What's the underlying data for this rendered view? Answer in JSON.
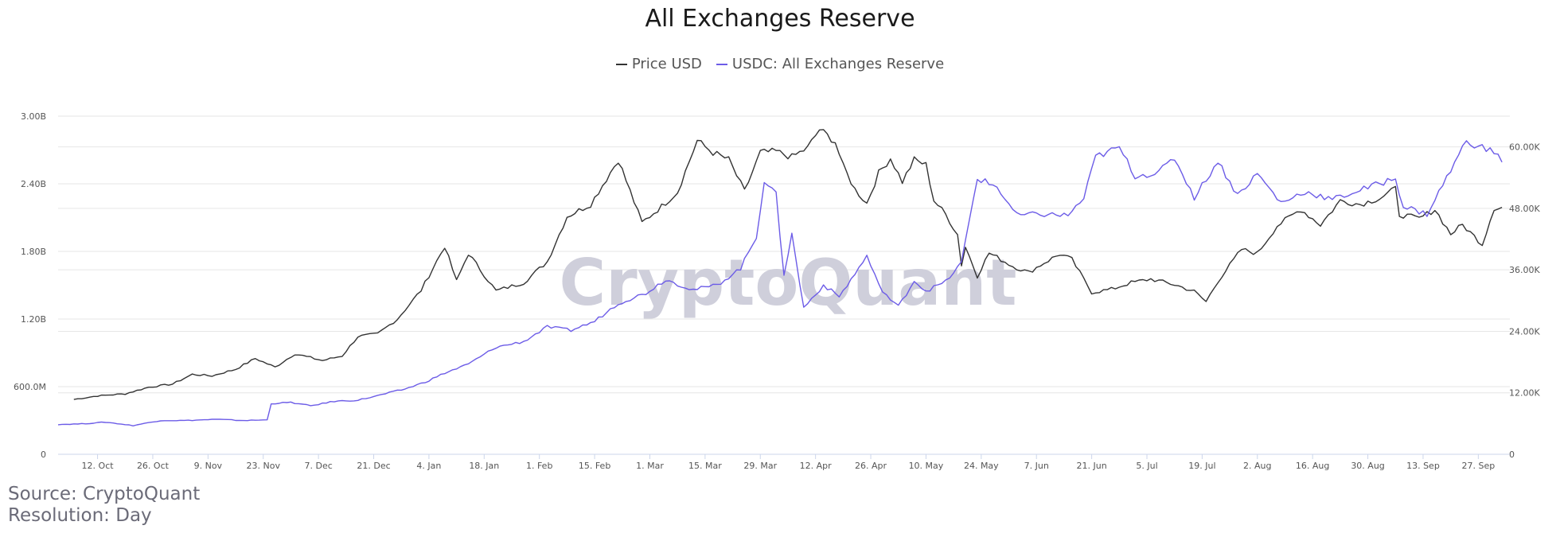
{
  "chart_data": {
    "type": "line",
    "title": "All Exchanges Reserve",
    "watermark": "CryptoQuant",
    "left_axis": {
      "ylim": [
        0,
        3000000000
      ],
      "ticks": [
        0,
        600000000,
        1200000000,
        1800000000,
        2400000000,
        3000000000
      ],
      "tick_labels": [
        "0",
        "600.0M",
        "1.20B",
        "1.80B",
        "2.40B",
        "3.00B"
      ]
    },
    "right_axis": {
      "ylim": [
        0,
        66000
      ],
      "ticks": [
        0,
        12000,
        24000,
        36000,
        48000,
        60000
      ],
      "tick_labels": [
        "0",
        "12.00K",
        "24.00K",
        "36.00K",
        "48.00K",
        "60.00K"
      ]
    },
    "x_range": [
      "2020-10-02",
      "2021-10-05"
    ],
    "x_ticks": [
      {
        "date": "2020-10-12",
        "label": "12. Oct"
      },
      {
        "date": "2020-10-26",
        "label": "26. Oct"
      },
      {
        "date": "2020-11-09",
        "label": "9. Nov"
      },
      {
        "date": "2020-11-23",
        "label": "23. Nov"
      },
      {
        "date": "2020-12-07",
        "label": "7. Dec"
      },
      {
        "date": "2020-12-21",
        "label": "21. Dec"
      },
      {
        "date": "2021-01-04",
        "label": "4. Jan"
      },
      {
        "date": "2021-01-18",
        "label": "18. Jan"
      },
      {
        "date": "2021-02-01",
        "label": "1. Feb"
      },
      {
        "date": "2021-02-15",
        "label": "15. Feb"
      },
      {
        "date": "2021-03-01",
        "label": "1. Mar"
      },
      {
        "date": "2021-03-15",
        "label": "15. Mar"
      },
      {
        "date": "2021-03-29",
        "label": "29. Mar"
      },
      {
        "date": "2021-04-12",
        "label": "12. Apr"
      },
      {
        "date": "2021-04-26",
        "label": "26. Apr"
      },
      {
        "date": "2021-05-10",
        "label": "10. May"
      },
      {
        "date": "2021-05-24",
        "label": "24. May"
      },
      {
        "date": "2021-06-07",
        "label": "7. Jun"
      },
      {
        "date": "2021-06-21",
        "label": "21. Jun"
      },
      {
        "date": "2021-07-05",
        "label": "5. Jul"
      },
      {
        "date": "2021-07-19",
        "label": "19. Jul"
      },
      {
        "date": "2021-08-02",
        "label": "2. Aug"
      },
      {
        "date": "2021-08-16",
        "label": "16. Aug"
      },
      {
        "date": "2021-08-30",
        "label": "30. Aug"
      },
      {
        "date": "2021-09-13",
        "label": "13. Sep"
      },
      {
        "date": "2021-09-27",
        "label": "27. Sep"
      }
    ],
    "grid": true,
    "legend_position": "top-center",
    "series": [
      {
        "name": "Price USD",
        "axis": "right",
        "color": "#333333",
        "points": [
          [
            "2020-10-06",
            10700
          ],
          [
            "2020-10-12",
            11400
          ],
          [
            "2020-10-19",
            11800
          ],
          [
            "2020-10-25",
            13100
          ],
          [
            "2020-10-31",
            13700
          ],
          [
            "2020-11-05",
            15600
          ],
          [
            "2020-11-10",
            15300
          ],
          [
            "2020-11-16",
            16600
          ],
          [
            "2020-11-21",
            18700
          ],
          [
            "2020-11-26",
            17000
          ],
          [
            "2020-12-01",
            19600
          ],
          [
            "2020-12-08",
            18300
          ],
          [
            "2020-12-13",
            19200
          ],
          [
            "2020-12-17",
            23000
          ],
          [
            "2020-12-22",
            23500
          ],
          [
            "2020-12-27",
            26400
          ],
          [
            "2021-01-02",
            32000
          ],
          [
            "2021-01-08",
            40600
          ],
          [
            "2021-01-11",
            33800
          ],
          [
            "2021-01-14",
            39200
          ],
          [
            "2021-01-21",
            31900
          ],
          [
            "2021-01-28",
            33500
          ],
          [
            "2021-02-03",
            37600
          ],
          [
            "2021-02-08",
            46400
          ],
          [
            "2021-02-14",
            48800
          ],
          [
            "2021-02-21",
            57500
          ],
          [
            "2021-02-27",
            45200
          ],
          [
            "2021-03-04",
            48400
          ],
          [
            "2021-03-08",
            51200
          ],
          [
            "2021-03-13",
            61200
          ],
          [
            "2021-03-17",
            58900
          ],
          [
            "2021-03-21",
            57500
          ],
          [
            "2021-03-25",
            51300
          ],
          [
            "2021-03-29",
            58900
          ],
          [
            "2021-04-02",
            59100
          ],
          [
            "2021-04-06",
            58000
          ],
          [
            "2021-04-10",
            59800
          ],
          [
            "2021-04-13",
            63400
          ],
          [
            "2021-04-17",
            61000
          ],
          [
            "2021-04-19",
            56200
          ],
          [
            "2021-04-22",
            51700
          ],
          [
            "2021-04-25",
            49000
          ],
          [
            "2021-04-28",
            54900
          ],
          [
            "2021-05-01",
            57800
          ],
          [
            "2021-05-04",
            53200
          ],
          [
            "2021-05-07",
            57500
          ],
          [
            "2021-05-10",
            56500
          ],
          [
            "2021-05-12",
            49600
          ],
          [
            "2021-05-15",
            46800
          ],
          [
            "2021-05-18",
            42900
          ],
          [
            "2021-05-19",
            37000
          ],
          [
            "2021-05-20",
            40500
          ],
          [
            "2021-05-23",
            34800
          ],
          [
            "2021-05-26",
            39300
          ],
          [
            "2021-06-01",
            36700
          ],
          [
            "2021-06-05",
            35500
          ],
          [
            "2021-06-09",
            37400
          ],
          [
            "2021-06-13",
            39100
          ],
          [
            "2021-06-16",
            38000
          ],
          [
            "2021-06-21",
            31600
          ],
          [
            "2021-06-26",
            32200
          ],
          [
            "2021-07-01",
            33500
          ],
          [
            "2021-07-06",
            34200
          ],
          [
            "2021-07-12",
            33100
          ],
          [
            "2021-07-17",
            31800
          ],
          [
            "2021-07-20",
            29800
          ],
          [
            "2021-07-23",
            33800
          ],
          [
            "2021-07-29",
            40000
          ],
          [
            "2021-08-02",
            39200
          ],
          [
            "2021-08-07",
            44600
          ],
          [
            "2021-08-13",
            47800
          ],
          [
            "2021-08-18",
            44800
          ],
          [
            "2021-08-23",
            49500
          ],
          [
            "2021-08-28",
            48800
          ],
          [
            "2021-09-02",
            50000
          ],
          [
            "2021-09-06",
            51800
          ],
          [
            "2021-09-07",
            46800
          ],
          [
            "2021-09-12",
            46000
          ],
          [
            "2021-09-16",
            47800
          ],
          [
            "2021-09-20",
            43000
          ],
          [
            "2021-09-23",
            44800
          ],
          [
            "2021-09-28",
            41000
          ],
          [
            "2021-10-01",
            48100
          ],
          [
            "2021-10-03",
            48200
          ]
        ]
      },
      {
        "name": "USDC: All Exchanges Reserve",
        "axis": "left",
        "color": "#6c5ce7",
        "points": [
          [
            "2020-10-02",
            265000000
          ],
          [
            "2020-10-08",
            270000000
          ],
          [
            "2020-10-14",
            285000000
          ],
          [
            "2020-10-21",
            255000000
          ],
          [
            "2020-10-28",
            300000000
          ],
          [
            "2020-11-04",
            300000000
          ],
          [
            "2020-11-11",
            310000000
          ],
          [
            "2020-11-18",
            300000000
          ],
          [
            "2020-11-24",
            305000000
          ],
          [
            "2020-11-25",
            450000000
          ],
          [
            "2020-11-30",
            460000000
          ],
          [
            "2020-12-05",
            430000000
          ],
          [
            "2020-12-11",
            470000000
          ],
          [
            "2020-12-17",
            480000000
          ],
          [
            "2020-12-22",
            520000000
          ],
          [
            "2020-12-29",
            580000000
          ],
          [
            "2021-01-03",
            640000000
          ],
          [
            "2021-01-08",
            720000000
          ],
          [
            "2021-01-14",
            800000000
          ],
          [
            "2021-01-21",
            950000000
          ],
          [
            "2021-01-28",
            1000000000
          ],
          [
            "2021-02-03",
            1130000000
          ],
          [
            "2021-02-09",
            1100000000
          ],
          [
            "2021-02-15",
            1180000000
          ],
          [
            "2021-02-21",
            1340000000
          ],
          [
            "2021-02-28",
            1430000000
          ],
          [
            "2021-03-05",
            1550000000
          ],
          [
            "2021-03-12",
            1460000000
          ],
          [
            "2021-03-18",
            1500000000
          ],
          [
            "2021-03-24",
            1650000000
          ],
          [
            "2021-03-28",
            1930000000
          ],
          [
            "2021-03-30",
            2430000000
          ],
          [
            "2021-04-02",
            2300000000
          ],
          [
            "2021-04-04",
            1600000000
          ],
          [
            "2021-04-06",
            1950000000
          ],
          [
            "2021-04-09",
            1300000000
          ],
          [
            "2021-04-14",
            1500000000
          ],
          [
            "2021-04-18",
            1400000000
          ],
          [
            "2021-04-22",
            1600000000
          ],
          [
            "2021-04-25",
            1760000000
          ],
          [
            "2021-04-28",
            1500000000
          ],
          [
            "2021-05-01",
            1370000000
          ],
          [
            "2021-05-03",
            1310000000
          ],
          [
            "2021-05-07",
            1540000000
          ],
          [
            "2021-05-10",
            1450000000
          ],
          [
            "2021-05-15",
            1530000000
          ],
          [
            "2021-05-19",
            1700000000
          ],
          [
            "2021-05-23",
            2450000000
          ],
          [
            "2021-05-28",
            2370000000
          ],
          [
            "2021-06-02",
            2120000000
          ],
          [
            "2021-06-08",
            2130000000
          ],
          [
            "2021-06-15",
            2120000000
          ],
          [
            "2021-06-19",
            2270000000
          ],
          [
            "2021-06-22",
            2640000000
          ],
          [
            "2021-06-28",
            2720000000
          ],
          [
            "2021-07-02",
            2470000000
          ],
          [
            "2021-07-08",
            2500000000
          ],
          [
            "2021-07-12",
            2630000000
          ],
          [
            "2021-07-17",
            2280000000
          ],
          [
            "2021-07-23",
            2600000000
          ],
          [
            "2021-07-28",
            2300000000
          ],
          [
            "2021-08-02",
            2490000000
          ],
          [
            "2021-08-08",
            2230000000
          ],
          [
            "2021-08-14",
            2330000000
          ],
          [
            "2021-08-21",
            2260000000
          ],
          [
            "2021-08-26",
            2320000000
          ],
          [
            "2021-09-01",
            2390000000
          ],
          [
            "2021-09-06",
            2450000000
          ],
          [
            "2021-09-08",
            2200000000
          ],
          [
            "2021-09-14",
            2130000000
          ],
          [
            "2021-09-20",
            2520000000
          ],
          [
            "2021-09-24",
            2780000000
          ],
          [
            "2021-09-28",
            2720000000
          ],
          [
            "2021-10-01",
            2680000000
          ],
          [
            "2021-10-03",
            2610000000
          ]
        ]
      }
    ]
  },
  "source": {
    "line1": "Source: CryptoQuant",
    "line2": "Resolution: Day"
  }
}
